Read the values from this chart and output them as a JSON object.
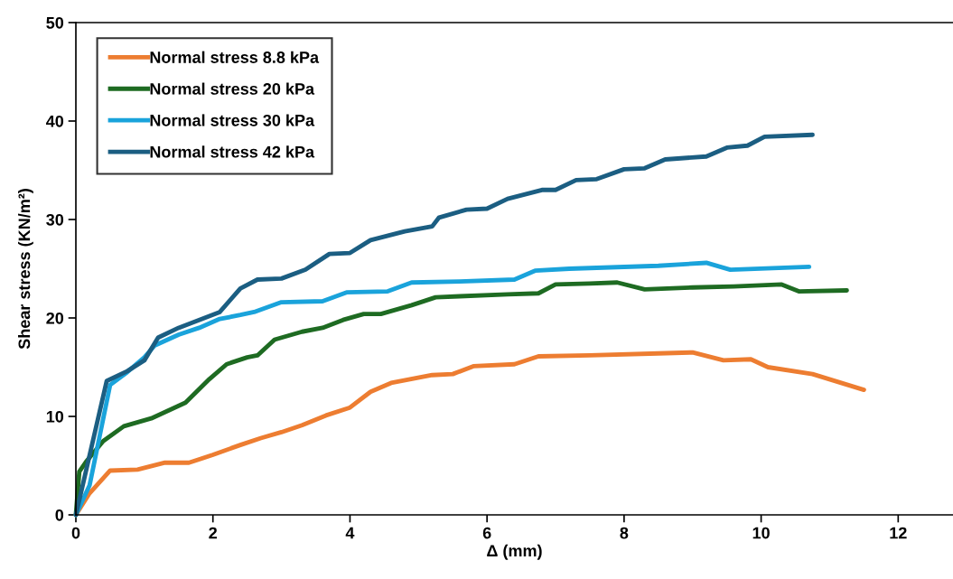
{
  "chart_data": {
    "type": "line",
    "xlabel": "Δ (mm)",
    "ylabel": "Shear stress (KN/m²)",
    "xlim": [
      0,
      12.8
    ],
    "xticks": [
      0,
      2,
      4,
      6,
      8,
      10,
      12
    ],
    "ylim": [
      0,
      50
    ],
    "yticks": [
      0,
      10,
      20,
      30,
      40,
      50
    ],
    "grid": false,
    "legend": "top left",
    "marker": "none",
    "line_style": "solid",
    "series": [
      {
        "name": "Normal stress 8.8 kPa",
        "color": "#ed7d31",
        "x": [
          0,
          0.2,
          0.5,
          0.9,
          1.3,
          1.65,
          2.0,
          2.4,
          2.7,
          3.0,
          3.3,
          3.65,
          4.0,
          4.3,
          4.6,
          5.2,
          5.5,
          5.8,
          6.4,
          6.75,
          7.5,
          8.5,
          9.0,
          9.45,
          9.85,
          10.1,
          10.75,
          11.5
        ],
        "values": [
          0,
          2.2,
          4.5,
          4.6,
          5.3,
          5.3,
          6.1,
          7.1,
          7.8,
          8.4,
          9.1,
          10.1,
          10.9,
          12.5,
          13.4,
          14.2,
          14.3,
          15.1,
          15.3,
          16.1,
          16.2,
          16.4,
          16.5,
          15.7,
          15.8,
          15.0,
          14.3,
          12.7
        ]
      },
      {
        "name": "Normal stress 20 kPa",
        "color": "#1e6b22",
        "x": [
          0,
          0.05,
          0.15,
          0.4,
          0.7,
          1.1,
          1.35,
          1.6,
          1.95,
          2.2,
          2.5,
          2.65,
          2.9,
          3.3,
          3.6,
          3.9,
          4.2,
          4.45,
          4.9,
          5.25,
          5.6,
          6.3,
          6.75,
          7.0,
          7.5,
          7.9,
          8.3,
          9.0,
          9.6,
          10.3,
          10.55,
          11.25
        ],
        "values": [
          0,
          4.4,
          5.4,
          7.5,
          9.0,
          9.8,
          10.6,
          11.4,
          13.8,
          15.3,
          16.0,
          16.2,
          17.8,
          18.6,
          19.0,
          19.8,
          20.4,
          20.4,
          21.3,
          22.1,
          22.2,
          22.4,
          22.5,
          23.4,
          23.5,
          23.6,
          22.9,
          23.1,
          23.2,
          23.4,
          22.7,
          22.8
        ]
      },
      {
        "name": "Normal stress 30 kPa",
        "color": "#1aa3db",
        "x": [
          0,
          0.2,
          0.5,
          0.75,
          1.0,
          1.15,
          1.5,
          1.8,
          2.1,
          2.4,
          2.6,
          3.0,
          3.6,
          3.95,
          4.55,
          4.9,
          5.6,
          6.4,
          6.7,
          7.2,
          8.5,
          9.2,
          9.55,
          10.7
        ],
        "values": [
          0,
          3.0,
          13.2,
          14.5,
          16.0,
          17.2,
          18.3,
          19.0,
          19.9,
          20.3,
          20.6,
          21.6,
          21.7,
          22.6,
          22.7,
          23.6,
          23.7,
          23.9,
          24.8,
          25.0,
          25.3,
          25.6,
          24.9,
          25.2
        ]
      },
      {
        "name": "Normal stress 42 kPa",
        "color": "#1b5e82",
        "x": [
          0,
          0.45,
          0.75,
          1.0,
          1.2,
          1.5,
          2.1,
          2.4,
          2.65,
          3.0,
          3.35,
          3.7,
          4.0,
          4.3,
          4.8,
          5.2,
          5.3,
          5.7,
          6.0,
          6.3,
          6.8,
          7.0,
          7.3,
          7.6,
          8.0,
          8.3,
          8.6,
          9.2,
          9.5,
          9.8,
          10.05,
          10.75
        ],
        "values": [
          0,
          13.6,
          14.6,
          15.7,
          18.0,
          19.0,
          20.6,
          23.0,
          23.9,
          24.0,
          24.9,
          26.5,
          26.6,
          27.9,
          28.8,
          29.3,
          30.2,
          31.0,
          31.1,
          32.1,
          33.0,
          33.0,
          34.0,
          34.1,
          35.1,
          35.2,
          36.1,
          36.4,
          37.3,
          37.5,
          38.4,
          38.6
        ]
      }
    ]
  }
}
